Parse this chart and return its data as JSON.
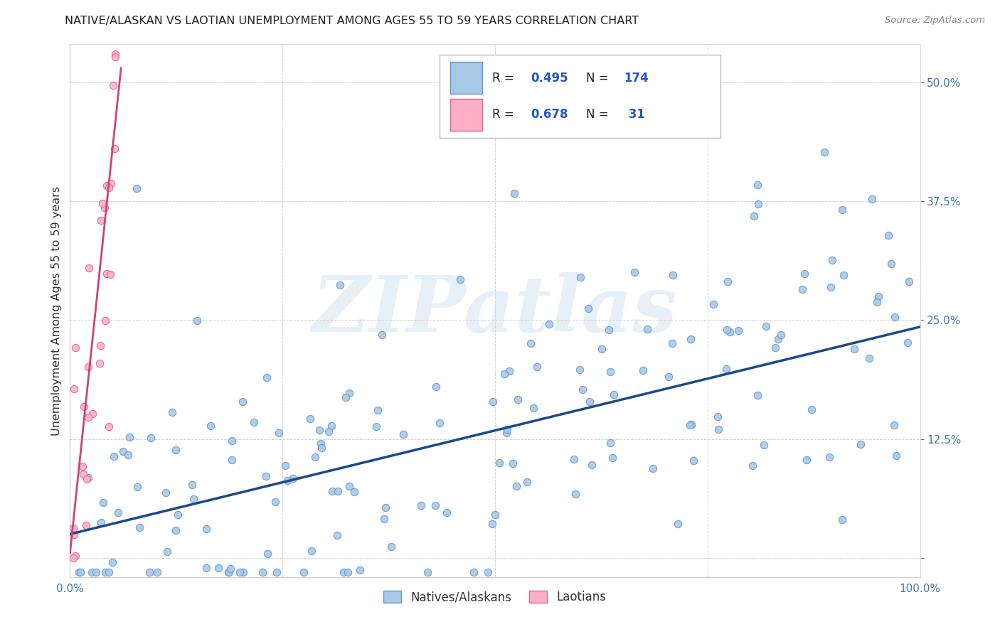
{
  "title": "NATIVE/ALASKAN VS LAOTIAN UNEMPLOYMENT AMONG AGES 55 TO 59 YEARS CORRELATION CHART",
  "source": "Source: ZipAtlas.com",
  "ylabel": "Unemployment Among Ages 55 to 59 years",
  "xlim": [
    0.0,
    1.0
  ],
  "ylim": [
    -0.02,
    0.54
  ],
  "blue_color": "#a8c8e8",
  "blue_edge_color": "#6699cc",
  "pink_color": "#ffb0c8",
  "pink_edge_color": "#dd6688",
  "blue_line_color": "#1a4a8a",
  "pink_line_color": "#cc4477",
  "legend_R_blue": "0.495",
  "legend_N_blue": "174",
  "legend_R_pink": "0.678",
  "legend_N_pink": " 31",
  "watermark": "ZIPatlas",
  "watermark_color": "#c5d8ec",
  "legend_label_blue": "Natives/Alaskans",
  "legend_label_pink": "Laotians",
  "blue_slope": 0.218,
  "blue_intercept": 0.025,
  "pink_slope": 8.5,
  "pink_intercept": 0.005
}
